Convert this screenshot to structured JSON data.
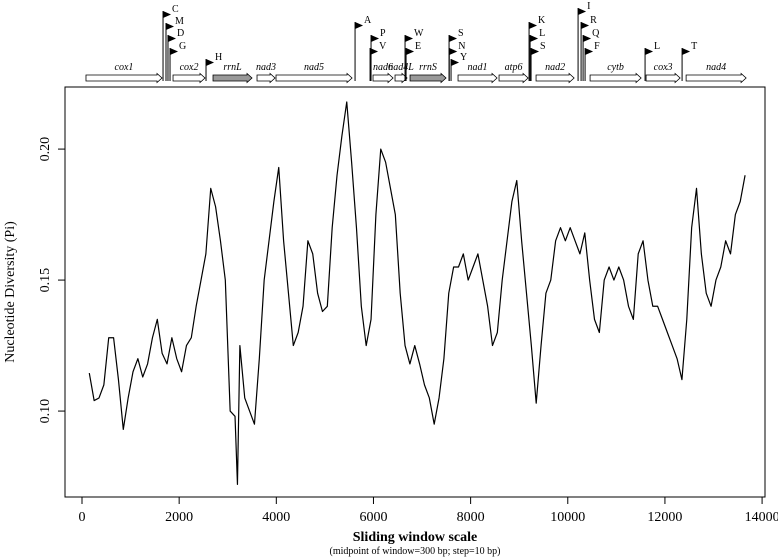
{
  "chart_data": {
    "type": "line",
    "ylabel": "Nucleotide Diversity (Pi)",
    "xlabel": "Sliding window scale",
    "xlabel_note": "(midpoint of window=300 bp; step=10 bp)",
    "color": "#000000",
    "x": [
      150,
      250,
      350,
      450,
      550,
      650,
      750,
      850,
      950,
      1050,
      1150,
      1250,
      1350,
      1450,
      1550,
      1650,
      1750,
      1850,
      1950,
      2050,
      2150,
      2250,
      2350,
      2450,
      2550,
      2650,
      2750,
      2850,
      2950,
      3050,
      3150,
      3200,
      3250,
      3350,
      3450,
      3550,
      3650,
      3750,
      3850,
      3950,
      4050,
      4150,
      4250,
      4350,
      4450,
      4550,
      4650,
      4750,
      4850,
      4950,
      5050,
      5150,
      5250,
      5350,
      5450,
      5550,
      5650,
      5750,
      5850,
      5950,
      6050,
      6150,
      6250,
      6350,
      6450,
      6550,
      6650,
      6750,
      6850,
      6950,
      7050,
      7150,
      7250,
      7350,
      7450,
      7550,
      7650,
      7750,
      7850,
      7950,
      8050,
      8150,
      8250,
      8350,
      8450,
      8550,
      8650,
      8750,
      8850,
      8950,
      9050,
      9150,
      9250,
      9350,
      9450,
      9550,
      9650,
      9750,
      9850,
      9950,
      10050,
      10150,
      10250,
      10350,
      10450,
      10550,
      10650,
      10750,
      10850,
      10950,
      11050,
      11150,
      11250,
      11350,
      11450,
      11550,
      11650,
      11750,
      11850,
      11950,
      12050,
      12150,
      12250,
      12350,
      12450,
      12550,
      12650,
      12750,
      12850,
      12950,
      13050,
      13150,
      13250,
      13350,
      13450,
      13550,
      13650
    ],
    "values": [
      0.1145,
      0.104,
      0.105,
      0.11,
      0.128,
      0.128,
      0.112,
      0.093,
      0.105,
      0.115,
      0.12,
      0.113,
      0.118,
      0.128,
      0.135,
      0.122,
      0.118,
      0.128,
      0.12,
      0.115,
      0.125,
      0.128,
      0.14,
      0.15,
      0.16,
      0.185,
      0.178,
      0.165,
      0.15,
      0.1,
      0.098,
      0.072,
      0.125,
      0.105,
      0.1,
      0.095,
      0.12,
      0.15,
      0.165,
      0.18,
      0.193,
      0.165,
      0.145,
      0.125,
      0.13,
      0.14,
      0.165,
      0.16,
      0.145,
      0.138,
      0.14,
      0.17,
      0.19,
      0.205,
      0.218,
      0.195,
      0.17,
      0.14,
      0.125,
      0.135,
      0.175,
      0.2,
      0.195,
      0.185,
      0.175,
      0.145,
      0.125,
      0.118,
      0.125,
      0.118,
      0.11,
      0.105,
      0.095,
      0.105,
      0.12,
      0.145,
      0.155,
      0.155,
      0.16,
      0.15,
      0.155,
      0.16,
      0.15,
      0.14,
      0.125,
      0.13,
      0.15,
      0.165,
      0.18,
      0.188,
      0.165,
      0.145,
      0.125,
      0.103,
      0.125,
      0.145,
      0.15,
      0.165,
      0.17,
      0.165,
      0.17,
      0.165,
      0.16,
      0.168,
      0.15,
      0.135,
      0.13,
      0.15,
      0.155,
      0.15,
      0.155,
      0.15,
      0.14,
      0.135,
      0.16,
      0.165,
      0.15,
      0.14,
      0.14,
      0.135,
      0.13,
      0.125,
      0.12,
      0.112,
      0.135,
      0.17,
      0.185,
      0.16,
      0.145,
      0.14,
      0.15,
      0.155,
      0.165,
      0.16,
      0.175,
      0.18,
      0.19
    ],
    "xlim": [
      -350,
      14060
    ],
    "ylim": [
      0.0672,
      0.2237
    ],
    "xticks": [
      0,
      2000,
      4000,
      6000,
      8000,
      10000,
      12000,
      14000
    ],
    "yticks": [
      {
        "value": 0.1,
        "label": "0.10"
      },
      0.15,
      {
        "value": 0.2,
        "label": "0.20"
      }
    ],
    "gene_map": {
      "genes": [
        {
          "name": "cox1",
          "start": 82,
          "end": 1647,
          "color": "#ffffff"
        },
        {
          "name": "cox2",
          "start": 1874,
          "end": 2532,
          "color": "#ffffff"
        },
        {
          "name": "rrnL",
          "start": 2697,
          "end": 3500,
          "color": "#999999"
        },
        {
          "name": "nad3",
          "start": 3603,
          "end": 3974,
          "color": "#ffffff"
        },
        {
          "name": "nad5",
          "start": 3994,
          "end": 5559,
          "color": "#ffffff"
        },
        {
          "name": "nad6",
          "start": 5991,
          "end": 6403,
          "color": "#ffffff"
        },
        {
          "name": "nad4L",
          "start": 6444,
          "end": 6691,
          "color": "#ffffff"
        },
        {
          "name": "rrnS",
          "start": 6753,
          "end": 7494,
          "color": "#999999"
        },
        {
          "name": "nad1",
          "start": 7741,
          "end": 8544,
          "color": "#ffffff"
        },
        {
          "name": "atp6",
          "start": 8585,
          "end": 9183,
          "color": "#ffffff"
        },
        {
          "name": "nad2",
          "start": 9347,
          "end": 10130,
          "color": "#ffffff"
        },
        {
          "name": "cytb",
          "start": 10459,
          "end": 11509,
          "color": "#ffffff"
        },
        {
          "name": "cox3",
          "start": 11612,
          "end": 12312,
          "color": "#ffffff"
        },
        {
          "name": "nad4",
          "start": 12436,
          "end": 13671,
          "color": "#ffffff"
        }
      ],
      "trnas": [
        {
          "name": "C",
          "pos": 1668
        },
        {
          "name": "M",
          "pos": 1729
        },
        {
          "name": "D",
          "pos": 1770
        },
        {
          "name": "G",
          "pos": 1812
        },
        {
          "name": "H",
          "pos": 2553
        },
        {
          "name": "A",
          "pos": 5621
        },
        {
          "name": "P",
          "pos": 5950
        },
        {
          "name": "V",
          "pos": 5930
        },
        {
          "name": "W",
          "pos": 6650
        },
        {
          "name": "E",
          "pos": 6671
        },
        {
          "name": "S",
          "pos": 7556
        },
        {
          "name": "N",
          "pos": 7560
        },
        {
          "name": "Y",
          "pos": 7597
        },
        {
          "name": "K",
          "pos": 9203
        },
        {
          "name": "L",
          "pos": 9224
        },
        {
          "name": "S",
          "pos": 9244
        },
        {
          "name": "I",
          "pos": 10212
        },
        {
          "name": "R",
          "pos": 10274
        },
        {
          "name": "Q",
          "pos": 10315
        },
        {
          "name": "F",
          "pos": 10356
        },
        {
          "name": "L",
          "pos": 11591
        },
        {
          "name": "T",
          "pos": 12353
        }
      ]
    }
  }
}
